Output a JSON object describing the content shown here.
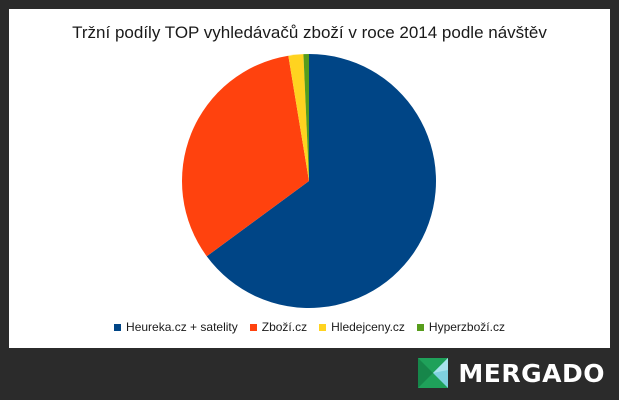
{
  "chart_data": {
    "type": "pie",
    "title": "Tržní podíly TOP vyhledávačů zboží v roce 2014 podle návštěv",
    "categories": [
      "Heureka.cz + satelity",
      "Zboží.cz",
      "Hledejceny.cz",
      "Hyperzboží.cz"
    ],
    "values": [
      64.9,
      32.5,
      1.9,
      0.7
    ],
    "colors": [
      "#004586",
      "#ff420e",
      "#ffd320",
      "#579d1c"
    ],
    "start_angle_deg": 0,
    "direction": "clockwise",
    "legend": "bottom"
  },
  "brand": {
    "name": "MERGADO",
    "logo_icon": "mergado-logo-icon",
    "logo_colors": [
      "#1fa15a",
      "#7fd1e0"
    ]
  }
}
